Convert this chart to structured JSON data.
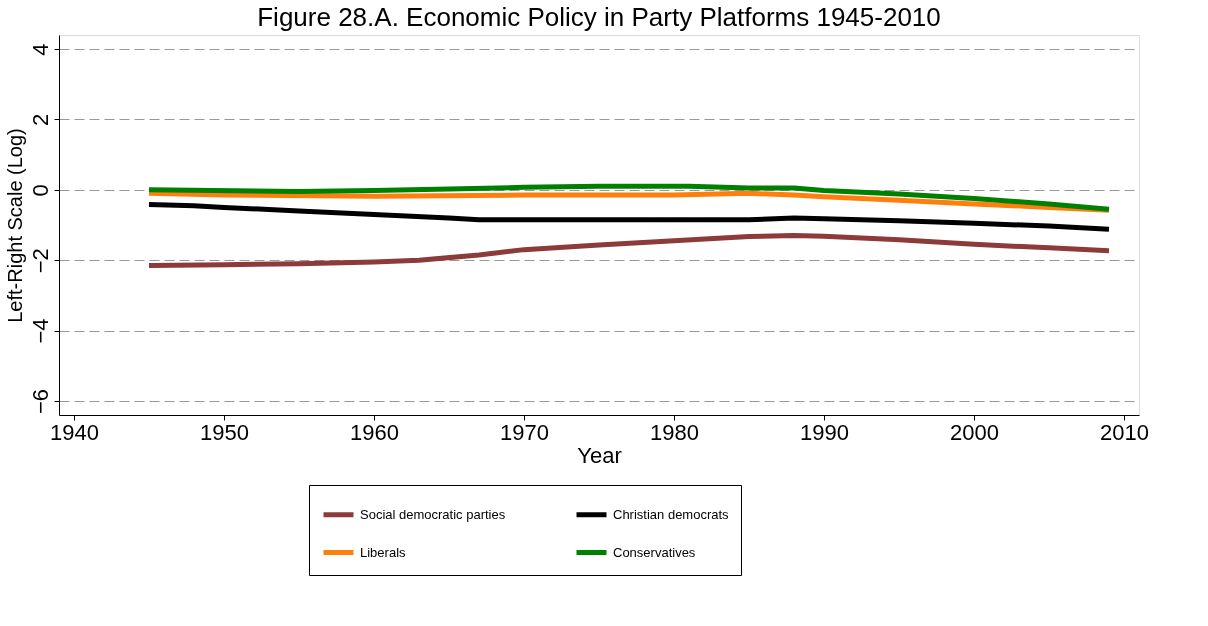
{
  "chart_data": {
    "type": "line",
    "title": "Figure 28.A. Economic Policy in Party Platforms 1945-2010",
    "xlabel": "Year",
    "ylabel": "Left-Right Scale (Log)",
    "xlim": [
      1939,
      2011
    ],
    "xticks": [
      1940,
      1950,
      1960,
      1970,
      1980,
      1990,
      2000,
      2010
    ],
    "ylim": [
      -6.4,
      4.4
    ],
    "yticks": [
      -6,
      -4,
      -2,
      0,
      2,
      4
    ],
    "grid": "y",
    "legend": "bottom",
    "line_style": "solid",
    "marker": "none",
    "series": [
      {
        "name": "Social democratic parties",
        "color": "#8c3a3a",
        "x": [
          1945,
          1950,
          1955,
          1960,
          1963,
          1967,
          1970,
          1975,
          1980,
          1985,
          1988,
          1990,
          1995,
          2000,
          2005,
          2009
        ],
        "values": [
          -2.15,
          -2.13,
          -2.1,
          -2.05,
          -2.0,
          -1.85,
          -1.7,
          -1.57,
          -1.45,
          -1.33,
          -1.3,
          -1.32,
          -1.42,
          -1.55,
          -1.65,
          -1.73
        ]
      },
      {
        "name": "Christian democrats",
        "color": "#000000",
        "x": [
          1945,
          1948,
          1950,
          1955,
          1960,
          1965,
          1967,
          1975,
          1985,
          1988,
          1990,
          1995,
          2000,
          2005,
          2009
        ],
        "values": [
          -0.42,
          -0.45,
          -0.5,
          -0.6,
          -0.7,
          -0.8,
          -0.85,
          -0.85,
          -0.85,
          -0.8,
          -0.82,
          -0.88,
          -0.95,
          -1.03,
          -1.12
        ]
      },
      {
        "name": "Liberals",
        "color": "#ff7f0e",
        "x": [
          1945,
          1950,
          1960,
          1970,
          1980,
          1985,
          1988,
          1990,
          1995,
          2000,
          2005,
          2009
        ],
        "values": [
          -0.1,
          -0.15,
          -0.18,
          -0.15,
          -0.15,
          -0.1,
          -0.15,
          -0.2,
          -0.3,
          -0.4,
          -0.5,
          -0.58
        ]
      },
      {
        "name": "Conservatives",
        "color": "#008000",
        "x": [
          1945,
          1955,
          1960,
          1965,
          1970,
          1975,
          1981,
          1985,
          1988,
          1990,
          1995,
          2000,
          2005,
          2009
        ],
        "values": [
          0,
          -0.05,
          -0.02,
          0.02,
          0.07,
          0.1,
          0.1,
          0.05,
          0.05,
          -0.02,
          -0.12,
          -0.25,
          -0.4,
          -0.55
        ]
      }
    ]
  }
}
